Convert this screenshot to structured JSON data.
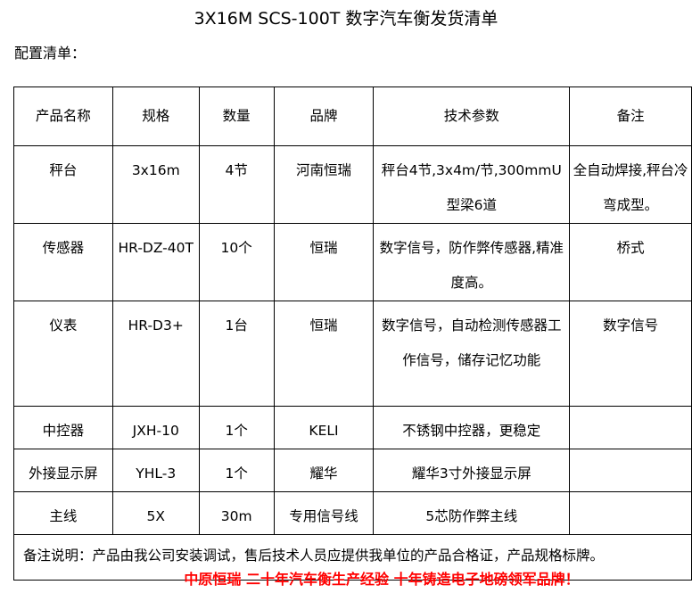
{
  "title": "3X16M SCS-100T 数字汽车衡发货清单",
  "subtitle": "配置清单：",
  "headers": [
    "产品名称",
    "规格",
    "数量",
    "品牌",
    "技术参数",
    "备注"
  ],
  "rows": [
    [
      "秤台",
      "3x16m",
      "4节",
      "河南恒瑞",
      "秤台4节,3x4m/节,300mmU型梁6道",
      "全自动焊接,秤台冷弯成型。"
    ],
    [
      "传感器",
      "HR-DZ-40T",
      "10个",
      "恒瑞",
      "数字信号，防作弊传感器,精准度高。",
      "桥式"
    ],
    [
      "仪表",
      "HR-D3+",
      "1台",
      "恒瑞",
      "数字信号，自动检测传感器工作信号，储存记忆功能",
      "数字信号"
    ],
    [
      "中控器",
      "JXH-10",
      "1个",
      "KELI",
      "不锈钢中控器，更稳定",
      ""
    ],
    [
      "外接显示屏",
      "YHL-3",
      "1个",
      "耀华",
      "耀华3寸外接显示屏",
      ""
    ],
    [
      "主线",
      "5X",
      "30m",
      "专用信号线",
      "5芯防作弊主线",
      ""
    ]
  ],
  "note": "备注说明：产品由我公司安装调试，售后技术人员应提供我单位的产品合格证，产品规格标牌。",
  "slogan": "中原恒瑞 二十年汽车衡生产经验 十年铸造电子地磅领军品牌！"
}
